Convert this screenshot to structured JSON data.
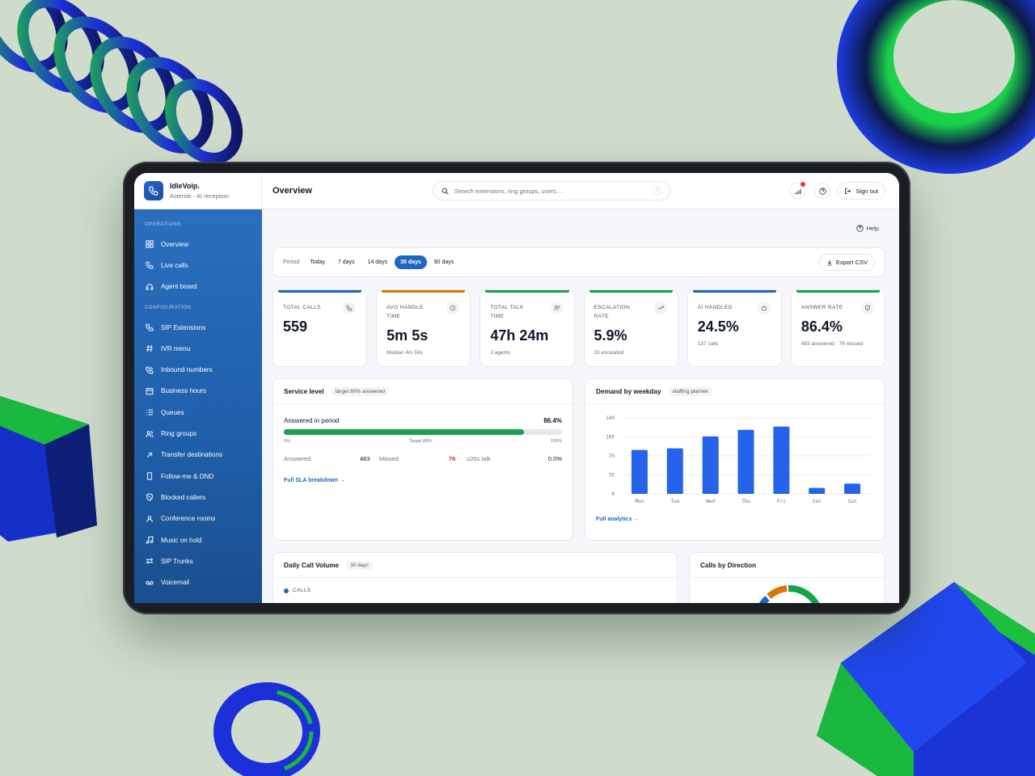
{
  "brand": {
    "name": "IdleVoip.",
    "subtitle": "Asterisk · AI reception"
  },
  "sidebar": {
    "sections": [
      {
        "title": "OPERATIONS",
        "items": [
          {
            "label": "Overview",
            "icon": "grid-icon"
          },
          {
            "label": "Live calls",
            "icon": "phone-call-icon"
          },
          {
            "label": "Agent board",
            "icon": "headset-icon"
          }
        ]
      },
      {
        "title": "CONFIGURATION",
        "items": [
          {
            "label": "SIP Extensions",
            "icon": "phone-icon"
          },
          {
            "label": "IVR menu",
            "icon": "hash-icon"
          },
          {
            "label": "Inbound numbers",
            "icon": "phone-incoming-icon"
          },
          {
            "label": "Business hours",
            "icon": "calendar-icon"
          },
          {
            "label": "Queues",
            "icon": "list-icon"
          },
          {
            "label": "Ring groups",
            "icon": "users-icon"
          },
          {
            "label": "Transfer destinations",
            "icon": "arrow-up-right-icon"
          },
          {
            "label": "Follow-me & DND",
            "icon": "smartphone-icon"
          },
          {
            "label": "Blocked callers",
            "icon": "shield-icon"
          },
          {
            "label": "Conference rooms",
            "icon": "user-group-icon"
          },
          {
            "label": "Music on hold",
            "icon": "music-icon"
          },
          {
            "label": "SIP Trunks",
            "icon": "arrows-icon"
          },
          {
            "label": "Voicemail",
            "icon": "voicemail-icon"
          }
        ]
      }
    ]
  },
  "header": {
    "title": "Overview",
    "search_placeholder": "Search extensions, ring groups, users…",
    "search_shortcut": "/",
    "signout_label": "Sign out"
  },
  "help_label": "Help",
  "period": {
    "label": "Period",
    "options": [
      "Today",
      "7 days",
      "14 days",
      "30 days",
      "90 days"
    ],
    "selected": "30 days",
    "export_label": "Export CSV"
  },
  "kpis": [
    {
      "label": "TOTAL CALLS",
      "value": "559",
      "sub": "",
      "color": "#1f66c1",
      "icon": "phone-icon"
    },
    {
      "label": "AVG HANDLE TIME",
      "value": "5m 5s",
      "sub": "Median 4m 59s",
      "color": "#d97706",
      "icon": "clock-icon"
    },
    {
      "label": "TOTAL TALK TIME",
      "value": "47h 24m",
      "sub": "3 agents",
      "color": "#16a34a",
      "icon": "users-icon"
    },
    {
      "label": "ESCALATION RATE",
      "value": "5.9%",
      "sub": "33 escalated",
      "color": "#16a34a",
      "icon": "trending-up-icon"
    },
    {
      "label": "AI HANDLED",
      "value": "24.5%",
      "sub": "137 calls",
      "color": "#1f66c1",
      "icon": "bot-icon"
    },
    {
      "label": "ANSWER RATE",
      "value": "86.4%",
      "sub": "483 answered · 76 missed",
      "color": "#16a34a",
      "icon": "shield-check-icon"
    }
  ],
  "service_level": {
    "title": "Service level",
    "tag": "target 80% answered",
    "row_label": "Answered in period",
    "row_value": "86.4%",
    "fill_fraction": 0.864,
    "ticks": [
      "0%",
      "Target 80%",
      "100%"
    ],
    "answered_label": "Answered",
    "answered_value": "483",
    "missed_label": "Missed",
    "missed_value": "76",
    "talk_label": "≤20s talk",
    "talk_value": "0.0%",
    "link": "Full SLA breakdown →"
  },
  "demand": {
    "title": "Demand by weekday",
    "tag": "staffing planner",
    "link": "Full analytics →"
  },
  "chart_data": {
    "type": "bar",
    "categories": [
      "Mon",
      "Tue",
      "Wed",
      "Thu",
      "Fri",
      "Sat",
      "Sun"
    ],
    "values": [
      81,
      84,
      106,
      118,
      124,
      11,
      19
    ],
    "yticks": [
      "0",
      "35",
      "70",
      "105",
      "140"
    ],
    "ylim": [
      0,
      140
    ],
    "color": "#2563eb",
    "grid": true
  },
  "daily_volume": {
    "title": "Daily Call Volume",
    "tag": "30 days",
    "legend": "CALLS"
  },
  "direction": {
    "title": "Calls by Direction"
  },
  "colors": {
    "accent": "#1f66c1",
    "success": "#16a34a",
    "warning": "#d97706",
    "danger": "#e53935"
  }
}
